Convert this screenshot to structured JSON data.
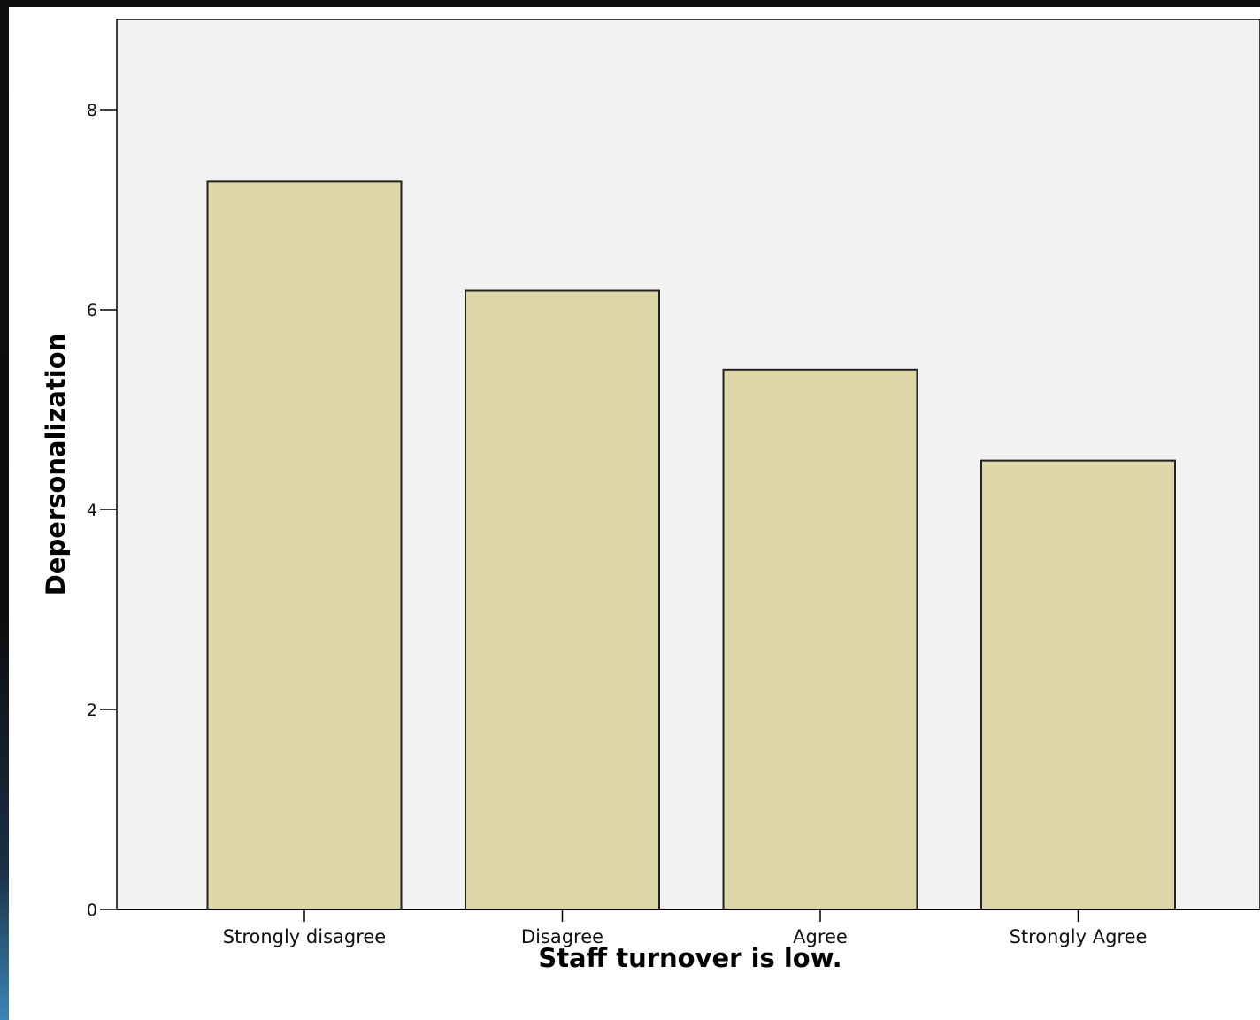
{
  "chart_data": {
    "type": "bar",
    "categories": [
      "Strongly disagree",
      "Disagree",
      "Agree",
      "Strongly Agree"
    ],
    "values": [
      7.28,
      6.19,
      5.4,
      4.49
    ],
    "xlabel": "Staff turnover is low.",
    "ylabel": "Depersonalization",
    "ylim": [
      0,
      8.9
    ],
    "yticks": [
      "0",
      "2",
      "4",
      "6",
      "8"
    ],
    "grid": false,
    "colors": {
      "bar_fill": "#ddd6a6",
      "bar_stroke": "#222222",
      "plot_background": "#f2f2f2"
    }
  }
}
